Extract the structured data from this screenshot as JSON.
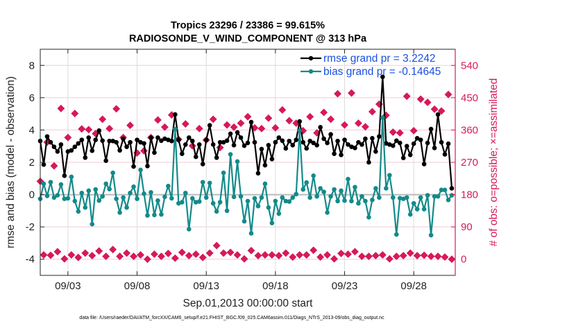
{
  "chart_data": {
    "type": "line",
    "title": "Tropics 23296 / 23386 = 99.615%",
    "subtitle": "RADIOSONDE_V_WIND_COMPONENT @ 313 hPa",
    "xlabel": "Sep.01,2013 00:00:00 start",
    "ylabel": "rmse and bias (model - observation)",
    "y2label": "# of obs: o=possible; ×=assimilated",
    "footnote": "data file: /Users/raeder/DAI/ATM_forcXX/CAM6_setup/f.e21.FHIST_BGC.f09_025.CAM6assim.011/Diags_NTrS_2013-09/obs_diag_output.nc",
    "x_unit": "days since Sep.01,2013 00:00:00 (6-hourly)",
    "xlim": [
      0,
      30
    ],
    "ylim": [
      -5,
      9
    ],
    "y2lim": [
      -45,
      585
    ],
    "xticks": [
      2,
      7,
      12,
      17,
      22,
      27
    ],
    "xtick_labels": [
      "09/03",
      "09/08",
      "09/13",
      "09/18",
      "09/23",
      "09/28"
    ],
    "yticks": [
      -4,
      -2,
      0,
      2,
      4,
      6,
      8
    ],
    "y2ticks": [
      0,
      90,
      180,
      270,
      360,
      450,
      540
    ],
    "grid": true,
    "legend_position": "top-right",
    "legend": [
      "rmse grand pr = 3.2242",
      "bias grand pr = -0.14645"
    ],
    "colors": {
      "rmse": "#000000",
      "bias": "#138a8a",
      "obs": "#d6195b",
      "legend_text": "#1a4fe0"
    },
    "series": [
      {
        "name": "rmse",
        "axis": "left",
        "values": [
          3.32,
          1.86,
          3.6,
          3.24,
          2.96,
          2.67,
          3.1,
          1.17,
          2.67,
          2.74,
          2.96,
          3.17,
          3.39,
          2.29,
          3.53,
          2.72,
          3.39,
          3.96,
          3.34,
          2.1,
          3.32,
          3.32,
          3.24,
          2.74,
          3.46,
          2.96,
          3.24,
          1.74,
          3.39,
          3.24,
          3.17,
          1.77,
          3.53,
          2.6,
          3.53,
          3.34,
          3.46,
          3.39,
          3.32,
          4.96,
          3.39,
          2.53,
          3.1,
          3.53,
          3.32,
          2.34,
          3.1,
          1.89,
          3.39,
          4.29,
          3.1,
          2.29,
          3.24,
          3.24,
          3.34,
          3.77,
          3.06,
          3.85,
          3.53,
          3.03,
          3.2,
          4.49,
          3.24,
          1.32,
          2.82,
          1.82,
          3.06,
          2.2,
          3.24,
          3.53,
          3.34,
          2.86,
          3.32,
          3.06,
          3.39,
          4.53,
          3.24,
          2.86,
          3.32,
          3.2,
          3.06,
          4.17,
          3.46,
          3.2,
          3.73,
          2.53,
          3.32,
          2.46,
          3.39,
          3.1,
          2.96,
          2.89,
          3.24,
          3.1,
          3.46,
          2.0,
          3.49,
          2.67,
          3.6,
          7.29,
          3.17,
          3.1,
          3.03,
          3.34,
          3.2,
          2.27,
          3.0,
          2.46,
          3.15,
          3.49,
          3.39,
          1.89,
          3.2,
          4.06,
          2.89,
          4.96,
          3.24,
          2.49,
          3.15,
          0.39
        ]
      },
      {
        "name": "bias",
        "axis": "left",
        "values": [
          -0.26,
          0.67,
          -0.08,
          0.77,
          -0.18,
          -0.04,
          0.63,
          -0.26,
          -0.23,
          1.1,
          -0.4,
          -1.04,
          0.1,
          -0.8,
          0.24,
          -1.83,
          0.32,
          -0.37,
          -0.11,
          0.67,
          0.34,
          1.35,
          -0.26,
          -1.11,
          -0.18,
          -0.8,
          0.1,
          0.49,
          -0.26,
          1.53,
          0.06,
          -1.29,
          0.14,
          -1.26,
          -0.37,
          -1.23,
          -0.14,
          0.53,
          -0.23,
          4.06,
          -0.54,
          -0.47,
          0.1,
          -2.14,
          -0.23,
          -0.47,
          -0.43,
          0.77,
          -0.18,
          0.72,
          -0.54,
          -1.04,
          -0.47,
          1.35,
          -1.0,
          2.49,
          -0.14,
          2.05,
          -0.11,
          -1.65,
          -0.4,
          -2.4,
          -0.23,
          -0.71,
          -0.18,
          0.67,
          -0.8,
          -1.76,
          -0.4,
          -1.18,
          -0.18,
          -0.4,
          -0.43,
          -0.18,
          0.03,
          3.96,
          0.32,
          0.75,
          -0.18,
          1.17,
          -0.11,
          0.39,
          0.17,
          -1.11,
          -0.11,
          0.32,
          -0.4,
          0.24,
          -0.37,
          0.96,
          -0.4,
          0.46,
          -0.54,
          -0.11,
          -0.4,
          -1.4,
          -0.33,
          0.39,
          -0.18,
          4.77,
          0.39,
          1.2,
          -0.18,
          -2.47,
          -0.22,
          -0.26,
          -0.18,
          -1.23,
          -0.54,
          -0.9,
          -0.18,
          -0.9,
          -0.04,
          -2.51,
          -0.11,
          -0.11,
          0.29,
          0.29,
          -0.33,
          -0.04
        ]
      },
      {
        "name": "obs count (00Z/12Z)",
        "axis": "right",
        "x_offset_steps": 0,
        "step": 2,
        "values": [
          217,
          326,
          260,
          420,
          339,
          406,
          363,
          361,
          350,
          390,
          364,
          419,
          339,
          373,
          296,
          302,
          339,
          388,
          368,
          402,
          334,
          377,
          316,
          364,
          332,
          390,
          311,
          374,
          368,
          379,
          397,
          366,
          364,
          393,
          366,
          416,
          386,
          379,
          358,
          397,
          352,
          409,
          390,
          461,
          374,
          463,
          379,
          369,
          411,
          432,
          401,
          354,
          352,
          454,
          358,
          446,
          437,
          418,
          413,
          459
        ]
      },
      {
        "name": "obs count (06Z/18Z)",
        "axis": "right",
        "x_offset_steps": 1,
        "step": 2,
        "values": [
          12,
          11,
          21,
          1,
          12,
          5,
          17,
          10,
          23,
          8,
          27,
          8,
          17,
          8,
          12,
          0,
          14,
          8,
          16,
          3,
          19,
          10,
          14,
          5,
          17,
          38,
          17,
          19,
          12,
          1,
          24,
          10,
          12,
          12,
          10,
          17,
          6,
          12,
          12,
          25,
          6,
          12,
          1,
          16,
          14,
          21,
          8,
          8,
          10,
          12,
          1,
          8,
          10,
          17,
          10,
          11,
          8,
          8,
          6,
          0
        ]
      }
    ]
  }
}
